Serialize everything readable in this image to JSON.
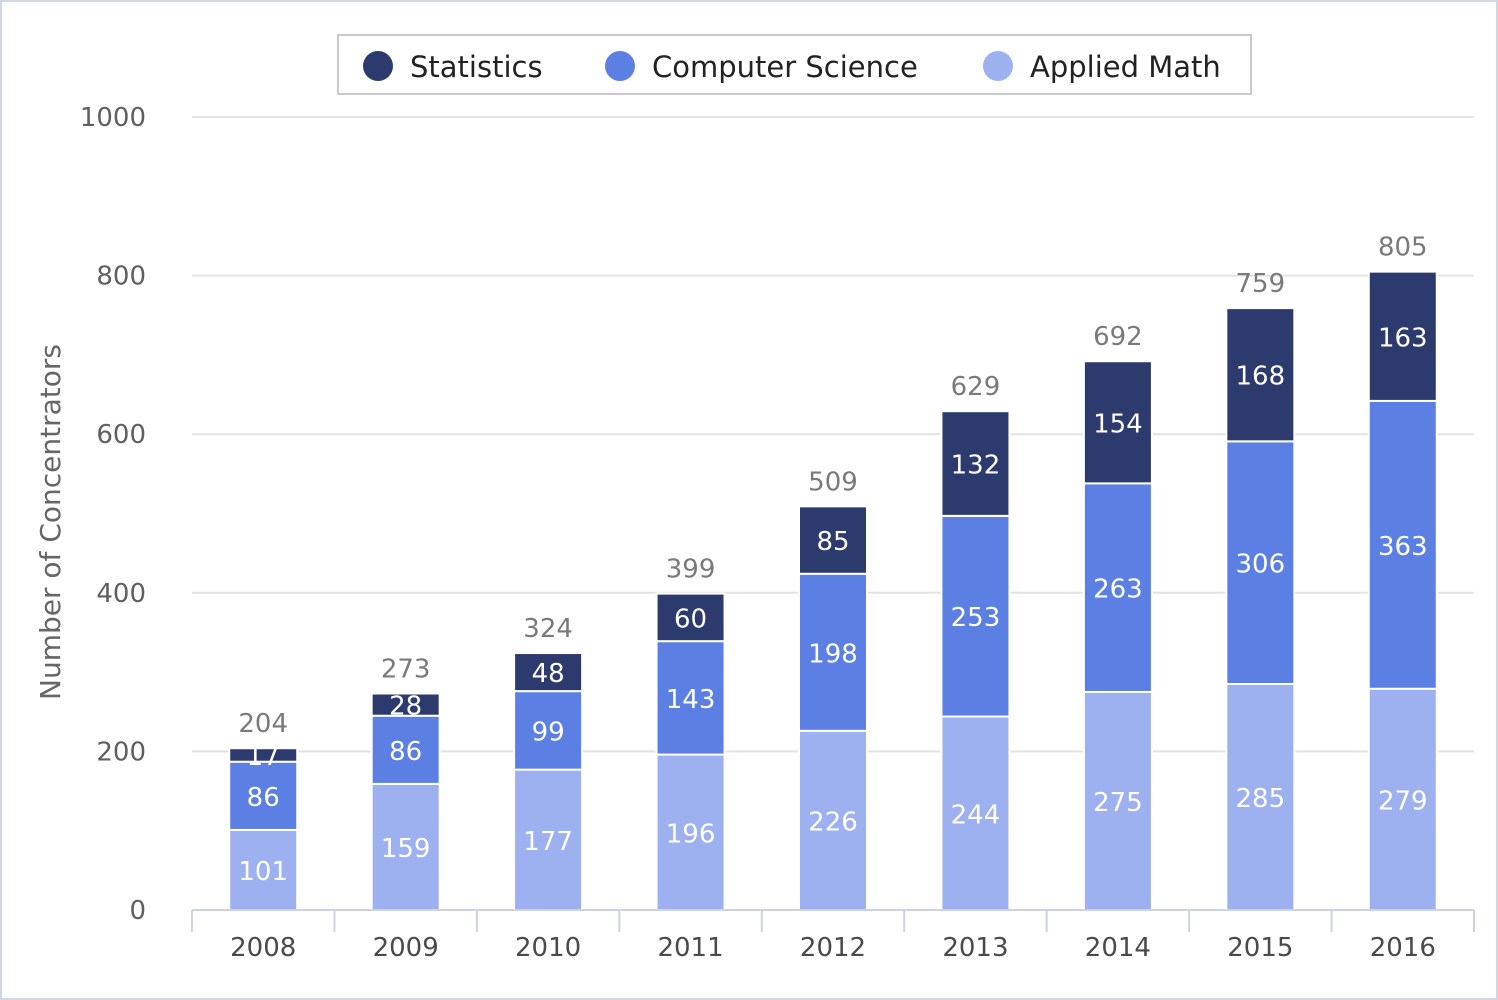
{
  "chart_data": {
    "type": "bar",
    "stacked": true,
    "categories": [
      "2008",
      "2009",
      "2010",
      "2011",
      "2012",
      "2013",
      "2014",
      "2015",
      "2016"
    ],
    "series": [
      {
        "name": "Applied Math",
        "color": "#9db0f0",
        "values": [
          101,
          159,
          177,
          196,
          226,
          244,
          275,
          285,
          279
        ]
      },
      {
        "name": "Computer Science",
        "color": "#5b7fe3",
        "values": [
          86,
          86,
          99,
          143,
          198,
          253,
          263,
          306,
          363
        ]
      },
      {
        "name": "Statistics",
        "color": "#2c3a6e",
        "values": [
          17,
          28,
          48,
          60,
          85,
          132,
          154,
          168,
          163
        ]
      }
    ],
    "totals": [
      204,
      273,
      324,
      399,
      509,
      629,
      692,
      759,
      805
    ],
    "legend": {
      "placement": "top-center",
      "entries": [
        "Statistics",
        "Computer Science",
        "Applied Math"
      ]
    },
    "title": "",
    "xlabel": "",
    "ylabel": "Number of Concentrators",
    "ylim": [
      0,
      1000
    ],
    "yticks": [
      0,
      200,
      400,
      600,
      800,
      1000
    ],
    "grid": true
  }
}
